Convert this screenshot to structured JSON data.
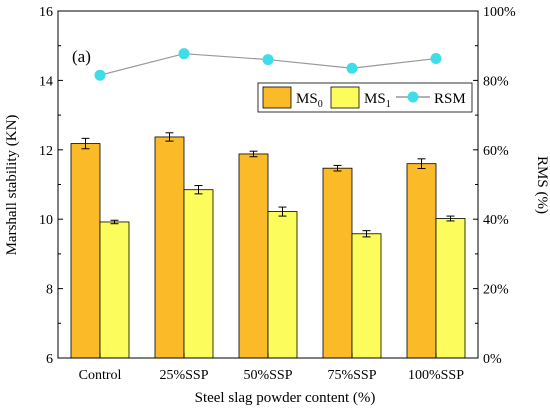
{
  "chart_data": {
    "type": "bar",
    "panel_label": "(a)",
    "title": "",
    "xlabel": "Steel slag  powder content (%)",
    "ylabel": "Marshall stability (KN)",
    "y2label": "RMS (%)",
    "categories": [
      "Control",
      "25%SSP",
      "50%SSP",
      "75%SSP",
      "100%SSP"
    ],
    "ylim": [
      6,
      16
    ],
    "yticks": [
      "6",
      "8",
      "10",
      "12",
      "14",
      "16"
    ],
    "y2lim": [
      0,
      100
    ],
    "y2ticks": [
      "0%",
      "20%",
      "40%",
      "60%",
      "80%",
      "100%"
    ],
    "series": [
      {
        "name": "MS",
        "subscript": "0",
        "kind": "bar",
        "axis": "left",
        "color": "#FBBA28",
        "values": [
          12.18,
          12.37,
          11.88,
          11.47,
          11.6
        ],
        "errors": [
          0.15,
          0.12,
          0.08,
          0.08,
          0.14
        ]
      },
      {
        "name": "MS",
        "subscript": "1",
        "kind": "bar",
        "axis": "left",
        "color": "#FCFC5C",
        "values": [
          9.92,
          10.85,
          10.22,
          9.58,
          10.02
        ],
        "errors": [
          0.05,
          0.12,
          0.13,
          0.09,
          0.07
        ]
      },
      {
        "name": "RSM",
        "kind": "line",
        "axis": "right",
        "color": "#3FDDE7",
        "line_color": "#999999",
        "values": [
          81.5,
          87.7,
          86.0,
          83.5,
          86.3
        ]
      }
    ],
    "legend_position": "top-right",
    "grid": false
  }
}
